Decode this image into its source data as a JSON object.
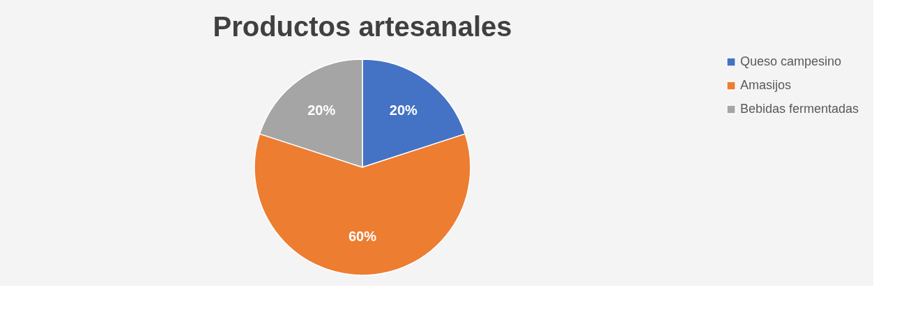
{
  "chart_data": {
    "type": "pie",
    "title": "Productos artesanales",
    "categories": [
      "Queso campesino",
      "Amasijos",
      "Bebidas fermentadas"
    ],
    "values": [
      20,
      60,
      20
    ],
    "colors": [
      "#4472c4",
      "#ed7d31",
      "#a5a5a5"
    ],
    "value_labels": [
      "20%",
      "60%",
      "20%"
    ],
    "legend": "right"
  }
}
